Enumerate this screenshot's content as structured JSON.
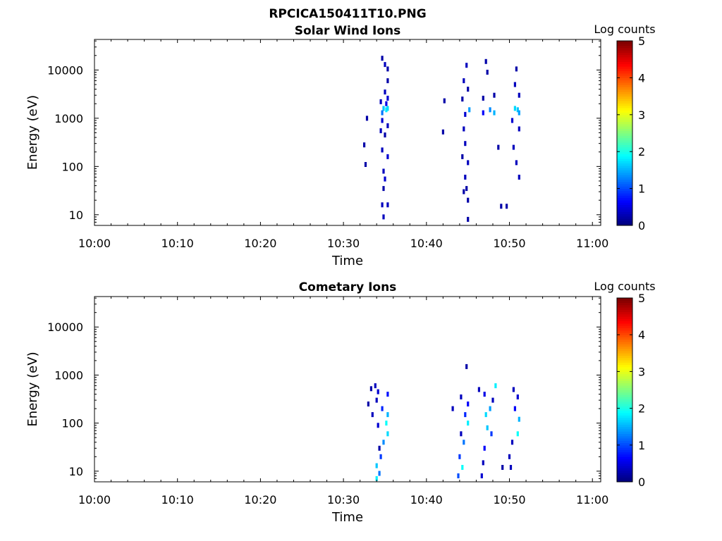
{
  "figure": {
    "title": "RPCICA150411T10.PNG"
  },
  "chart_data": [
    {
      "type": "heatmap",
      "title": "Solar Wind Ions",
      "xlabel": "Time",
      "ylabel": "Energy (eV)",
      "x_ticks": [
        "10:00",
        "10:10",
        "10:20",
        "10:30",
        "10:40",
        "10:50",
        "11:00"
      ],
      "xlim": [
        "10:00",
        "11:01"
      ],
      "y_scale": "log",
      "y_ticks": [
        "10",
        "100",
        "1000",
        "10000"
      ],
      "ylim": [
        6,
        43000
      ],
      "colorbar": {
        "label": "Log counts",
        "ticks": [
          "0",
          "1",
          "2",
          "3",
          "4",
          "5"
        ],
        "range": [
          0,
          5
        ],
        "colormap": "jet"
      },
      "cells": [
        {
          "t": "10:34:40",
          "e": 17500,
          "v": 0.2
        },
        {
          "t": "10:35:00",
          "e": 13000,
          "v": 0.3
        },
        {
          "t": "10:35:20",
          "e": 10500,
          "v": 0.2
        },
        {
          "t": "10:35:20",
          "e": 6000,
          "v": 0.2
        },
        {
          "t": "10:35:00",
          "e": 3500,
          "v": 0.3
        },
        {
          "t": "10:35:20",
          "e": 2600,
          "v": 0.4
        },
        {
          "t": "10:34:30",
          "e": 2200,
          "v": 0.3
        },
        {
          "t": "10:35:10",
          "e": 2000,
          "v": 0.5
        },
        {
          "t": "10:34:50",
          "e": 1600,
          "v": 1.6
        },
        {
          "t": "10:35:10",
          "e": 1500,
          "v": 1.8
        },
        {
          "t": "10:35:20",
          "e": 1600,
          "v": 1.7
        },
        {
          "t": "10:34:40",
          "e": 1300,
          "v": 1.2
        },
        {
          "t": "10:32:50",
          "e": 1000,
          "v": 0.2
        },
        {
          "t": "10:34:40",
          "e": 900,
          "v": 0.4
        },
        {
          "t": "10:35:20",
          "e": 700,
          "v": 0.3
        },
        {
          "t": "10:34:30",
          "e": 550,
          "v": 0.3
        },
        {
          "t": "10:35:00",
          "e": 450,
          "v": 0.2
        },
        {
          "t": "10:32:30",
          "e": 280,
          "v": 0.2
        },
        {
          "t": "10:34:40",
          "e": 220,
          "v": 0.3
        },
        {
          "t": "10:35:20",
          "e": 160,
          "v": 0.4
        },
        {
          "t": "10:32:40",
          "e": 110,
          "v": 0.2
        },
        {
          "t": "10:34:50",
          "e": 80,
          "v": 0.3
        },
        {
          "t": "10:35:00",
          "e": 55,
          "v": 0.4
        },
        {
          "t": "10:34:50",
          "e": 35,
          "v": 0.2
        },
        {
          "t": "10:34:40",
          "e": 16,
          "v": 0.3
        },
        {
          "t": "10:35:20",
          "e": 16,
          "v": 0.3
        },
        {
          "t": "10:34:50",
          "e": 9,
          "v": 0.3
        },
        {
          "t": "10:44:50",
          "e": 12500,
          "v": 0.3
        },
        {
          "t": "10:44:30",
          "e": 6000,
          "v": 0.3
        },
        {
          "t": "10:45:00",
          "e": 4000,
          "v": 0.2
        },
        {
          "t": "10:44:20",
          "e": 2500,
          "v": 0.2
        },
        {
          "t": "10:45:10",
          "e": 1500,
          "v": 1.4
        },
        {
          "t": "10:44:40",
          "e": 1200,
          "v": 0.4
        },
        {
          "t": "10:42:10",
          "e": 2300,
          "v": 0.2
        },
        {
          "t": "10:44:30",
          "e": 600,
          "v": 0.3
        },
        {
          "t": "10:42:00",
          "e": 520,
          "v": 0.2
        },
        {
          "t": "10:44:40",
          "e": 300,
          "v": 0.3
        },
        {
          "t": "10:44:20",
          "e": 160,
          "v": 0.2
        },
        {
          "t": "10:45:00",
          "e": 120,
          "v": 0.3
        },
        {
          "t": "10:44:40",
          "e": 60,
          "v": 0.3
        },
        {
          "t": "10:44:50",
          "e": 35,
          "v": 0.2
        },
        {
          "t": "10:44:30",
          "e": 30,
          "v": 0.2
        },
        {
          "t": "10:45:00",
          "e": 20,
          "v": 0.2
        },
        {
          "t": "10:45:00",
          "e": 8,
          "v": 0.2
        },
        {
          "t": "10:47:10",
          "e": 15000,
          "v": 0.2
        },
        {
          "t": "10:47:20",
          "e": 9000,
          "v": 0.2
        },
        {
          "t": "10:48:10",
          "e": 3000,
          "v": 0.2
        },
        {
          "t": "10:46:50",
          "e": 2600,
          "v": 0.2
        },
        {
          "t": "10:47:40",
          "e": 1500,
          "v": 1.3
        },
        {
          "t": "10:46:50",
          "e": 1300,
          "v": 0.6
        },
        {
          "t": "10:48:10",
          "e": 1300,
          "v": 1.5
        },
        {
          "t": "10:48:40",
          "e": 250,
          "v": 0.2
        },
        {
          "t": "10:50:50",
          "e": 10500,
          "v": 0.2
        },
        {
          "t": "10:50:40",
          "e": 5000,
          "v": 0.3
        },
        {
          "t": "10:51:10",
          "e": 3000,
          "v": 0.3
        },
        {
          "t": "10:50:40",
          "e": 1600,
          "v": 1.7
        },
        {
          "t": "10:51:00",
          "e": 1500,
          "v": 1.6
        },
        {
          "t": "10:51:10",
          "e": 1300,
          "v": 1.4
        },
        {
          "t": "10:50:20",
          "e": 900,
          "v": 0.4
        },
        {
          "t": "10:51:10",
          "e": 600,
          "v": 0.3
        },
        {
          "t": "10:50:30",
          "e": 250,
          "v": 0.3
        },
        {
          "t": "10:50:50",
          "e": 120,
          "v": 0.3
        },
        {
          "t": "10:51:10",
          "e": 60,
          "v": 0.3
        },
        {
          "t": "10:49:00",
          "e": 15,
          "v": 0.2
        },
        {
          "t": "10:49:40",
          "e": 15,
          "v": 0.2
        }
      ]
    },
    {
      "type": "heatmap",
      "title": "Cometary Ions",
      "xlabel": "Time",
      "ylabel": "Energy (eV)",
      "x_ticks": [
        "10:00",
        "10:10",
        "10:20",
        "10:30",
        "10:40",
        "10:50",
        "11:00"
      ],
      "xlim": [
        "10:00",
        "11:01"
      ],
      "y_scale": "log",
      "y_ticks": [
        "10",
        "100",
        "1000",
        "10000"
      ],
      "ylim": [
        6,
        43000
      ],
      "colorbar": {
        "label": "Log counts",
        "ticks": [
          "0",
          "1",
          "2",
          "3",
          "4",
          "5"
        ],
        "range": [
          0,
          5
        ],
        "colormap": "jet"
      },
      "cells": [
        {
          "t": "10:33:50",
          "e": 600,
          "v": 0.3
        },
        {
          "t": "10:33:20",
          "e": 520,
          "v": 0.2
        },
        {
          "t": "10:34:10",
          "e": 450,
          "v": 0.4
        },
        {
          "t": "10:35:20",
          "e": 400,
          "v": 0.7
        },
        {
          "t": "10:34:00",
          "e": 300,
          "v": 0.3
        },
        {
          "t": "10:33:00",
          "e": 250,
          "v": 0.2
        },
        {
          "t": "10:34:40",
          "e": 200,
          "v": 0.8
        },
        {
          "t": "10:35:20",
          "e": 150,
          "v": 1.5
        },
        {
          "t": "10:33:30",
          "e": 150,
          "v": 0.3
        },
        {
          "t": "10:35:10",
          "e": 100,
          "v": 1.9
        },
        {
          "t": "10:34:10",
          "e": 90,
          "v": 0.4
        },
        {
          "t": "10:35:20",
          "e": 60,
          "v": 1.7
        },
        {
          "t": "10:34:50",
          "e": 40,
          "v": 1.3
        },
        {
          "t": "10:34:20",
          "e": 30,
          "v": 0.2
        },
        {
          "t": "10:34:30",
          "e": 20,
          "v": 0.9
        },
        {
          "t": "10:34:00",
          "e": 13,
          "v": 1.6
        },
        {
          "t": "10:34:20",
          "e": 9,
          "v": 1.2
        },
        {
          "t": "10:34:00",
          "e": 7,
          "v": 1.8
        },
        {
          "t": "10:44:50",
          "e": 1500,
          "v": 0.2
        },
        {
          "t": "10:44:10",
          "e": 350,
          "v": 0.3
        },
        {
          "t": "10:43:10",
          "e": 200,
          "v": 0.3
        },
        {
          "t": "10:45:00",
          "e": 250,
          "v": 0.6
        },
        {
          "t": "10:44:40",
          "e": 150,
          "v": 0.8
        },
        {
          "t": "10:45:00",
          "e": 100,
          "v": 1.8
        },
        {
          "t": "10:44:10",
          "e": 60,
          "v": 0.3
        },
        {
          "t": "10:44:30",
          "e": 40,
          "v": 1.2
        },
        {
          "t": "10:44:00",
          "e": 20,
          "v": 0.9
        },
        {
          "t": "10:44:20",
          "e": 12,
          "v": 1.9
        },
        {
          "t": "10:43:50",
          "e": 8,
          "v": 1.0
        },
        {
          "t": "10:46:20",
          "e": 500,
          "v": 0.3
        },
        {
          "t": "10:47:00",
          "e": 400,
          "v": 0.5
        },
        {
          "t": "10:48:20",
          "e": 600,
          "v": 1.8
        },
        {
          "t": "10:48:00",
          "e": 300,
          "v": 0.3
        },
        {
          "t": "10:47:10",
          "e": 150,
          "v": 1.7
        },
        {
          "t": "10:47:40",
          "e": 200,
          "v": 1.4
        },
        {
          "t": "10:47:20",
          "e": 80,
          "v": 1.6
        },
        {
          "t": "10:47:50",
          "e": 60,
          "v": 0.9
        },
        {
          "t": "10:47:00",
          "e": 30,
          "v": 0.6
        },
        {
          "t": "10:46:50",
          "e": 15,
          "v": 0.3
        },
        {
          "t": "10:46:40",
          "e": 8,
          "v": 0.4
        },
        {
          "t": "10:49:10",
          "e": 12,
          "v": 0.2
        },
        {
          "t": "10:50:30",
          "e": 500,
          "v": 0.3
        },
        {
          "t": "10:51:00",
          "e": 350,
          "v": 0.4
        },
        {
          "t": "10:50:40",
          "e": 200,
          "v": 0.6
        },
        {
          "t": "10:51:10",
          "e": 120,
          "v": 1.5
        },
        {
          "t": "10:51:00",
          "e": 60,
          "v": 1.9
        },
        {
          "t": "10:50:20",
          "e": 40,
          "v": 0.3
        },
        {
          "t": "10:50:00",
          "e": 20,
          "v": 0.3
        },
        {
          "t": "10:50:10",
          "e": 12,
          "v": 0.3
        }
      ]
    }
  ]
}
